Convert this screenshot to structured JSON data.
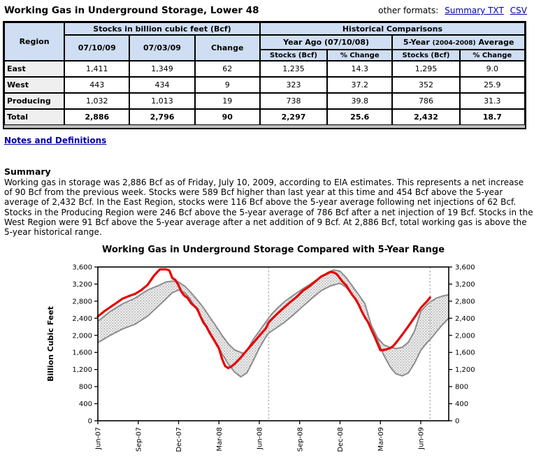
{
  "page": {
    "title": "Working Gas in Underground Storage, Lower 48",
    "other_formats_label": "other formats:",
    "format_links": [
      {
        "label": "Summary TXT"
      },
      {
        "label": "CSV"
      }
    ],
    "notes_link": "Notes and Definitions"
  },
  "table": {
    "header": {
      "region": "Region",
      "stocks_group": "Stocks in billion cubic feet (Bcf)",
      "historical_group": "Historical Comparisons",
      "col_current": "07/10/09",
      "col_previous": "07/03/09",
      "col_change": "Change",
      "year_ago_group": "Year Ago (07/10/08)",
      "five_year_prefix": "5-Year ",
      "five_year_paren": "(2004-2008)",
      "five_year_suffix": " Average",
      "sub_stocks": "Stocks (Bcf)",
      "sub_pct": "% Change"
    },
    "rows": [
      {
        "region": "East",
        "current": "1,411",
        "previous": "1,349",
        "change": "62",
        "ya_stocks": "1,235",
        "ya_pct": "14.3",
        "fy_stocks": "1,295",
        "fy_pct": "9.0",
        "bold": false
      },
      {
        "region": "West",
        "current": "443",
        "previous": "434",
        "change": "9",
        "ya_stocks": "323",
        "ya_pct": "37.2",
        "fy_stocks": "352",
        "fy_pct": "25.9",
        "bold": false
      },
      {
        "region": "Producing",
        "current": "1,032",
        "previous": "1,013",
        "change": "19",
        "ya_stocks": "738",
        "ya_pct": "39.8",
        "fy_stocks": "786",
        "fy_pct": "31.3",
        "bold": false
      },
      {
        "region": "Total",
        "current": "2,886",
        "previous": "2,796",
        "change": "90",
        "ya_stocks": "2,297",
        "ya_pct": "25.6",
        "fy_stocks": "2,432",
        "fy_pct": "18.7",
        "bold": true
      }
    ]
  },
  "summary": {
    "heading": "Summary",
    "text": "Working gas in storage was 2,886 Bcf as of Friday, July 10, 2009, according to EIA estimates. This represents a net increase of 90 Bcf from the previous week. Stocks were 589 Bcf higher than last year at this time and 454 Bcf above the 5-year average of 2,432 Bcf. In the East Region, stocks were 116 Bcf above the 5-year average following net injections of 62 Bcf. Stocks in the Producing Region were 246 Bcf above the 5-year average of 786 Bcf after a net injection of 19 Bcf. Stocks in the West Region were 91 Bcf above the 5-year average after a net addition of 9 Bcf. At 2,886 Bcf, total working gas is above the 5-year historical range."
  },
  "chart_data": {
    "type": "line",
    "title": "Working Gas in Underground Storage Compared with 5-Year Range",
    "ylabel": "Billion Cubic Feet",
    "ylim": [
      0,
      3600
    ],
    "ytick_step": 400,
    "x_unit": "weeks from late June 2007",
    "xlim": [
      0,
      113
    ],
    "grid": false,
    "legend": "none",
    "xticks": {
      "weeks": [
        0,
        13,
        26,
        39,
        52,
        65,
        78,
        91,
        104
      ],
      "labels": [
        "Jun-07",
        "Sep-07",
        "Dec-07",
        "Mar-08",
        "Jun-08",
        "Sep-08",
        "Dec-08",
        "Mar-09",
        "Jun-09"
      ]
    },
    "vline_weeks": [
      55,
      107
    ],
    "colors": {
      "current": "#e80000",
      "range_line": "#8c8c8c",
      "range_fill_bg": "#ececec",
      "range_fill_dot": "#9a9a9a",
      "vline": "#bbbbbb"
    },
    "series": [
      {
        "name": "five-year-max",
        "role": "band-top",
        "points": [
          [
            0,
            2330
          ],
          [
            4,
            2560
          ],
          [
            8,
            2740
          ],
          [
            12,
            2870
          ],
          [
            16,
            3060
          ],
          [
            20,
            3180
          ],
          [
            22,
            3250
          ],
          [
            24,
            3270
          ],
          [
            26,
            3250
          ],
          [
            28,
            3150
          ],
          [
            30,
            3000
          ],
          [
            32,
            2830
          ],
          [
            34,
            2650
          ],
          [
            36,
            2430
          ],
          [
            38,
            2220
          ],
          [
            40,
            2000
          ],
          [
            42,
            1800
          ],
          [
            44,
            1660
          ],
          [
            46,
            1600
          ],
          [
            47,
            1580
          ],
          [
            48,
            1640
          ],
          [
            50,
            1900
          ],
          [
            52,
            2100
          ],
          [
            54,
            2300
          ],
          [
            55,
            2400
          ],
          [
            56,
            2500
          ],
          [
            58,
            2650
          ],
          [
            60,
            2780
          ],
          [
            62,
            2890
          ],
          [
            64,
            2990
          ],
          [
            66,
            3090
          ],
          [
            68,
            3180
          ],
          [
            70,
            3280
          ],
          [
            72,
            3380
          ],
          [
            74,
            3470
          ],
          [
            76,
            3530
          ],
          [
            78,
            3500
          ],
          [
            80,
            3350
          ],
          [
            82,
            3150
          ],
          [
            84,
            2950
          ],
          [
            86,
            2740
          ],
          [
            88,
            2250
          ],
          [
            90,
            1950
          ],
          [
            92,
            1780
          ],
          [
            94,
            1720
          ],
          [
            96,
            1690
          ],
          [
            98,
            1720
          ],
          [
            100,
            1840
          ],
          [
            102,
            2100
          ],
          [
            104,
            2560
          ],
          [
            106,
            2720
          ],
          [
            107,
            2780
          ],
          [
            109,
            2870
          ],
          [
            111,
            2920
          ],
          [
            113,
            2950
          ]
        ]
      },
      {
        "name": "five-year-min",
        "role": "band-bottom",
        "points": [
          [
            0,
            1830
          ],
          [
            4,
            2000
          ],
          [
            8,
            2150
          ],
          [
            12,
            2260
          ],
          [
            16,
            2450
          ],
          [
            20,
            2720
          ],
          [
            24,
            3000
          ],
          [
            26,
            3060
          ],
          [
            28,
            3000
          ],
          [
            30,
            2820
          ],
          [
            32,
            2580
          ],
          [
            34,
            2340
          ],
          [
            36,
            2090
          ],
          [
            38,
            1830
          ],
          [
            40,
            1570
          ],
          [
            42,
            1330
          ],
          [
            44,
            1140
          ],
          [
            46,
            1030
          ],
          [
            48,
            1120
          ],
          [
            50,
            1400
          ],
          [
            52,
            1700
          ],
          [
            54,
            1950
          ],
          [
            55,
            2050
          ],
          [
            57,
            2150
          ],
          [
            60,
            2300
          ],
          [
            63,
            2480
          ],
          [
            66,
            2680
          ],
          [
            69,
            2870
          ],
          [
            72,
            3050
          ],
          [
            75,
            3160
          ],
          [
            78,
            3220
          ],
          [
            80,
            3120
          ],
          [
            82,
            2950
          ],
          [
            84,
            2700
          ],
          [
            86,
            2440
          ],
          [
            88,
            2160
          ],
          [
            90,
            1900
          ],
          [
            92,
            1550
          ],
          [
            94,
            1280
          ],
          [
            95,
            1180
          ],
          [
            96,
            1100
          ],
          [
            98,
            1050
          ],
          [
            100,
            1120
          ],
          [
            102,
            1350
          ],
          [
            104,
            1650
          ],
          [
            106,
            1830
          ],
          [
            107,
            1900
          ],
          [
            109,
            2080
          ],
          [
            111,
            2250
          ],
          [
            113,
            2400
          ]
        ]
      },
      {
        "name": "working-gas-current",
        "role": "line",
        "points": [
          [
            0,
            2443
          ],
          [
            2,
            2560
          ],
          [
            4,
            2660
          ],
          [
            6,
            2760
          ],
          [
            8,
            2860
          ],
          [
            10,
            2920
          ],
          [
            12,
            2970
          ],
          [
            14,
            3060
          ],
          [
            16,
            3180
          ],
          [
            18,
            3390
          ],
          [
            19,
            3470
          ],
          [
            20,
            3545
          ],
          [
            22,
            3545
          ],
          [
            23,
            3520
          ],
          [
            24,
            3340
          ],
          [
            25,
            3294
          ],
          [
            26,
            3170
          ],
          [
            27,
            3010
          ],
          [
            28,
            2920
          ],
          [
            29,
            2870
          ],
          [
            30,
            2750
          ],
          [
            31,
            2690
          ],
          [
            32,
            2620
          ],
          [
            33,
            2450
          ],
          [
            34,
            2300
          ],
          [
            35,
            2200
          ],
          [
            36,
            2060
          ],
          [
            38,
            1820
          ],
          [
            39,
            1690
          ],
          [
            40,
            1450
          ],
          [
            41,
            1280
          ],
          [
            42,
            1234
          ],
          [
            43,
            1270
          ],
          [
            44,
            1330
          ],
          [
            46,
            1480
          ],
          [
            48,
            1650
          ],
          [
            50,
            1820
          ],
          [
            52,
            1990
          ],
          [
            54,
            2150
          ],
          [
            55,
            2297
          ],
          [
            56,
            2380
          ],
          [
            58,
            2520
          ],
          [
            60,
            2650
          ],
          [
            62,
            2780
          ],
          [
            64,
            2900
          ],
          [
            66,
            3040
          ],
          [
            68,
            3140
          ],
          [
            70,
            3260
          ],
          [
            72,
            3380
          ],
          [
            74,
            3450
          ],
          [
            75,
            3488
          ],
          [
            76,
            3470
          ],
          [
            77,
            3430
          ],
          [
            78,
            3330
          ],
          [
            79,
            3240
          ],
          [
            80,
            3170
          ],
          [
            81,
            3050
          ],
          [
            82,
            2940
          ],
          [
            83,
            2850
          ],
          [
            84,
            2720
          ],
          [
            85,
            2560
          ],
          [
            86,
            2420
          ],
          [
            87,
            2310
          ],
          [
            88,
            2150
          ],
          [
            89,
            1990
          ],
          [
            90,
            1820
          ],
          [
            91,
            1651
          ],
          [
            92,
            1654
          ],
          [
            93,
            1674
          ],
          [
            94,
            1695
          ],
          [
            95,
            1741
          ],
          [
            96,
            1823
          ],
          [
            97,
            1918
          ],
          [
            98,
            2013
          ],
          [
            100,
            2213
          ],
          [
            102,
            2420
          ],
          [
            104,
            2641
          ],
          [
            105,
            2721
          ],
          [
            106,
            2796
          ],
          [
            107,
            2886
          ]
        ]
      }
    ]
  }
}
